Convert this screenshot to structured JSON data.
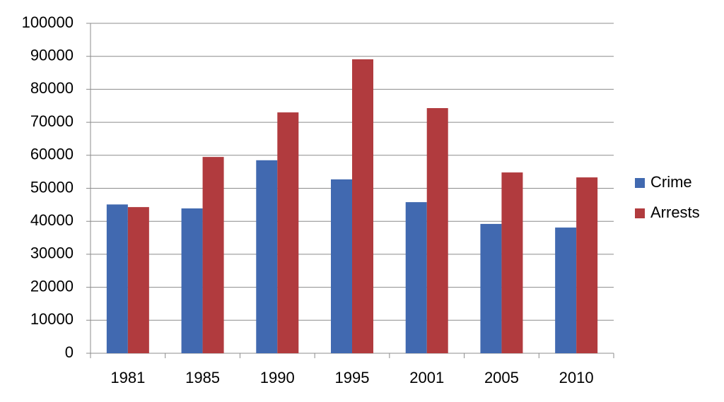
{
  "chart_data": {
    "type": "bar",
    "categories": [
      "1981",
      "1985",
      "1990",
      "1995",
      "2001",
      "2005",
      "2010"
    ],
    "series": [
      {
        "name": "Crime",
        "color": "#4169b0",
        "values": [
          45100,
          43900,
          58500,
          52700,
          45800,
          39200,
          38100
        ]
      },
      {
        "name": "Arrests",
        "color": "#b13b3e",
        "values": [
          44300,
          59500,
          73000,
          89100,
          74300,
          54800,
          53300
        ]
      }
    ],
    "ylim": [
      0,
      100000
    ],
    "yticks": [
      0,
      10000,
      20000,
      30000,
      40000,
      50000,
      60000,
      70000,
      80000,
      90000,
      100000
    ],
    "grid": true,
    "legend": "right"
  }
}
